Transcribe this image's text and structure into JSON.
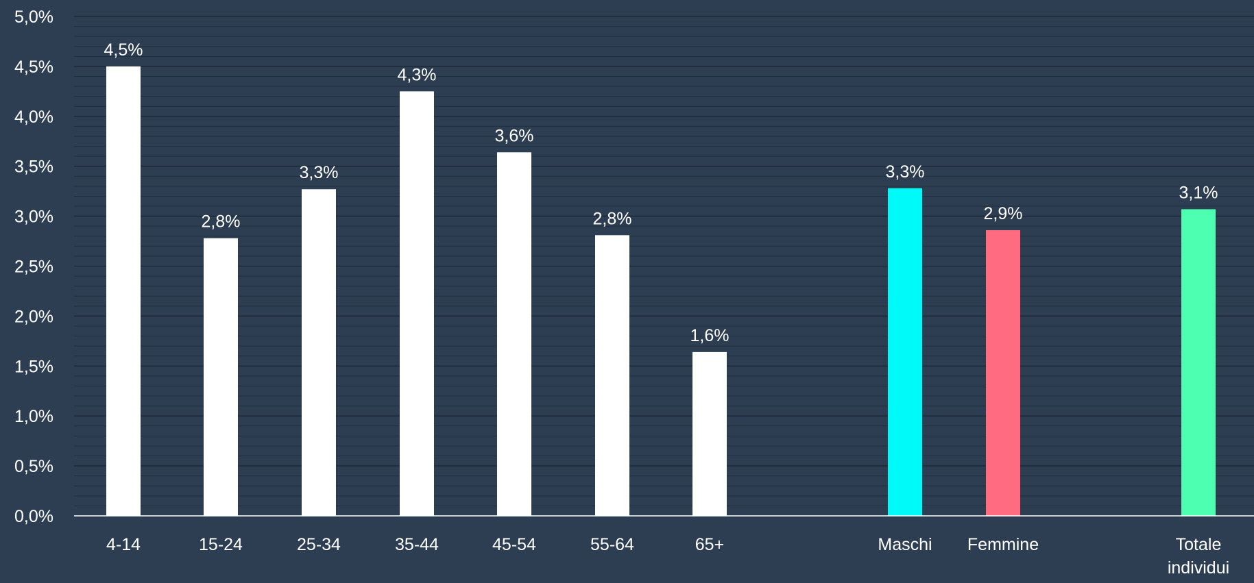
{
  "chart_data": {
    "type": "bar",
    "title": "",
    "xlabel": "",
    "ylabel": "",
    "ylim": [
      0,
      5
    ],
    "grid": true,
    "legend": "none",
    "y_ticks": [
      "0,0%",
      "0,5%",
      "1,0%",
      "1,5%",
      "2,0%",
      "2,5%",
      "3,0%",
      "3,5%",
      "4,0%",
      "4,5%",
      "5,0%"
    ],
    "categories": [
      {
        "label": "4-14",
        "value": 4.5,
        "data_label": "4,5%",
        "color": "#ffffff"
      },
      {
        "label": "15-24",
        "value": 2.78,
        "data_label": "2,8%",
        "color": "#ffffff"
      },
      {
        "label": "25-34",
        "value": 3.27,
        "data_label": "3,3%",
        "color": "#ffffff"
      },
      {
        "label": "35-44",
        "value": 4.25,
        "data_label": "4,3%",
        "color": "#ffffff"
      },
      {
        "label": "45-54",
        "value": 3.64,
        "data_label": "3,6%",
        "color": "#ffffff"
      },
      {
        "label": "55-64",
        "value": 2.81,
        "data_label": "2,8%",
        "color": "#ffffff"
      },
      {
        "label": "65+",
        "value": 1.64,
        "data_label": "1,6%",
        "color": "#ffffff"
      },
      {
        "label": "Maschi",
        "value": 3.28,
        "data_label": "3,3%",
        "color": "#00fafa"
      },
      {
        "label": "Femmine",
        "value": 2.86,
        "data_label": "2,9%",
        "color": "#ff6b80"
      },
      {
        "label": "Totale individui",
        "value": 3.07,
        "data_label": "3,1%",
        "color": "#4dffb0"
      }
    ],
    "colors": {
      "background": "#2d3e52",
      "gridline": "#1c2a3a",
      "axis": "#ffffff",
      "text": "#ffffff"
    }
  }
}
